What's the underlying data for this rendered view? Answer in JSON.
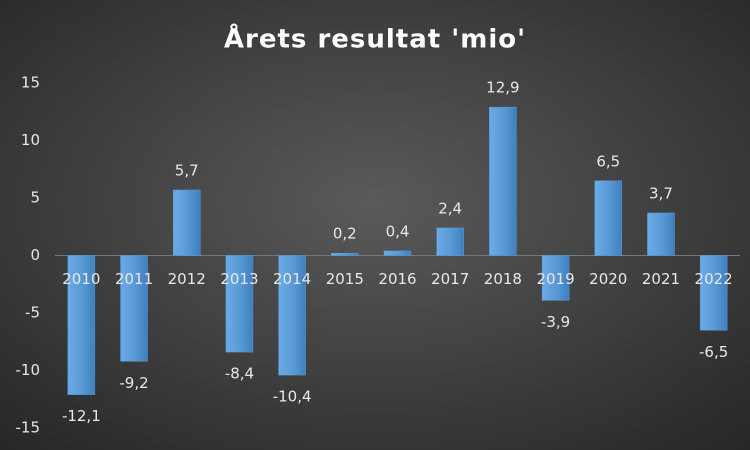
{
  "chart_data": {
    "type": "bar",
    "title": "Årets resultat 'mio'",
    "categories": [
      "2010",
      "2011",
      "2012",
      "2013",
      "2014",
      "2015",
      "2016",
      "2017",
      "2018",
      "2019",
      "2020",
      "2021",
      "2022"
    ],
    "values": [
      -12.1,
      -9.2,
      5.7,
      -8.4,
      -10.4,
      0.2,
      0.4,
      2.4,
      12.9,
      -3.9,
      6.5,
      3.7,
      -6.5
    ],
    "value_labels": [
      "-12,1",
      "-9,2",
      "5,7",
      "-8,4",
      "-10,4",
      "0,2",
      "0,4",
      "2,4",
      "12,9",
      "-3,9",
      "6,5",
      "3,7",
      "-6,5"
    ],
    "color": "#5b9bd5",
    "ylim": [
      -15,
      15
    ],
    "yticks": [
      15,
      10,
      5,
      0,
      -5,
      -10,
      -15
    ],
    "grid": false
  }
}
